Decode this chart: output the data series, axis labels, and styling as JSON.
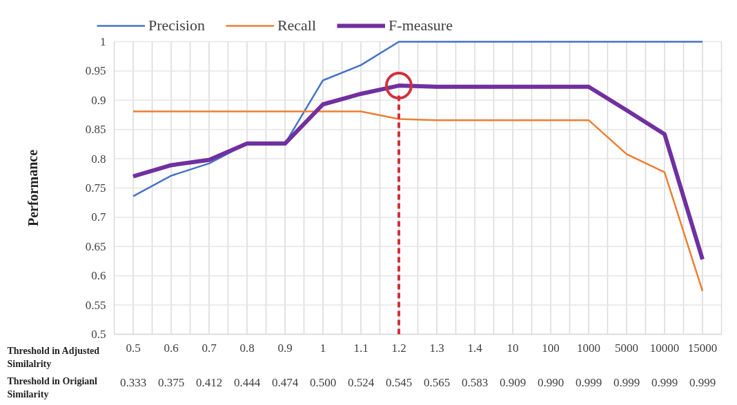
{
  "chart_data": {
    "type": "line",
    "categories": [
      "0.5",
      "0.6",
      "0.7",
      "0.8",
      "0.9",
      "1",
      "1.1",
      "1.2",
      "1.3",
      "1.4",
      "10",
      "100",
      "1000",
      "5000",
      "10000",
      "15000"
    ],
    "xlabel": "Threshold in Adjusted Similalrity",
    "ylabel": "Performance",
    "series": [
      {
        "name": "Precision",
        "color": "#4472c4",
        "values": [
          0.736,
          0.771,
          0.792,
          0.826,
          0.826,
          0.934,
          0.96,
          1,
          1,
          1,
          1,
          1,
          1,
          1,
          1,
          1
        ]
      },
      {
        "name": "Recall",
        "color": "#ed7d31",
        "values": [
          0.881,
          0.881,
          0.881,
          0.881,
          0.881,
          0.881,
          0.881,
          0.868,
          0.866,
          0.866,
          0.866,
          0.866,
          0.866,
          0.808,
          0.777,
          0.574
        ]
      },
      {
        "name": "F-measure",
        "color": "#7030a0",
        "values": [
          0.77,
          0.789,
          0.798,
          0.826,
          0.826,
          0.893,
          0.911,
          0.925,
          0.923,
          0.923,
          0.923,
          0.923,
          0.923,
          0.883,
          0.842,
          0.628
        ]
      }
    ],
    "ylim": [
      0.5,
      1
    ],
    "yticks": [
      0.5,
      0.55,
      0.6,
      0.65,
      0.7,
      0.75,
      0.8,
      0.85,
      0.9,
      0.95,
      1
    ],
    "grid": true,
    "legend": "top",
    "marker": "none",
    "line_style": "solid",
    "ref_lines": [
      {
        "axis": "x",
        "value": "1.2",
        "color": "#d0313d",
        "line_style": "dashed"
      }
    ],
    "annotations": [
      "Threshold in Origianl Similarity",
      "0.333",
      "0.375",
      "0.412",
      "0.444",
      "0.474",
      "0.500",
      "0.524",
      "0.545",
      "0.565",
      "0.583",
      "0.909",
      "0.990",
      "0.999",
      "0.999",
      "0.999",
      "0.999"
    ]
  }
}
